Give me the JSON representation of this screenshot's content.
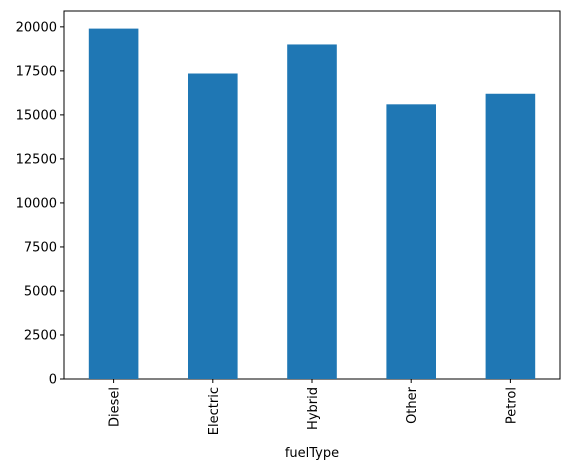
{
  "chart_data": {
    "type": "bar",
    "title": "",
    "xlabel": "fuelType",
    "ylabel": "",
    "categories": [
      "Diesel",
      "Electric",
      "Hybrid",
      "Other",
      "Petrol"
    ],
    "values": [
      19900,
      17350,
      19000,
      15600,
      16200
    ],
    "ylim": [
      0,
      20900
    ],
    "yticks": [
      0,
      2500,
      5000,
      7500,
      10000,
      12500,
      15000,
      17500,
      20000
    ],
    "ytick_labels": [
      "0",
      "2500",
      "5000",
      "7500",
      "10000",
      "12500",
      "15000",
      "17500",
      "20000"
    ],
    "grid": false,
    "legend": "none",
    "colors": {
      "bar": "#1f77b4",
      "axis": "#000000",
      "background": "#ffffff"
    }
  }
}
